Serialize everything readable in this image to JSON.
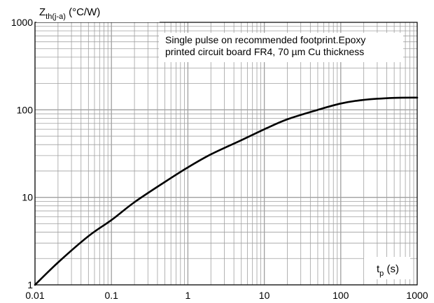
{
  "chart_data": {
    "type": "line",
    "xscale": "log",
    "yscale": "log",
    "xlim": [
      0.01,
      1000
    ],
    "ylim": [
      1,
      1000
    ],
    "grid": true,
    "x_ticks": [
      "0.01",
      "0.1",
      "1",
      "10",
      "100",
      "1000"
    ],
    "y_ticks": [
      "1",
      "10",
      "100",
      "1000"
    ],
    "ylabel": {
      "main": "Z",
      "sub": "th(j-a)",
      "unit": " (°C/W)"
    },
    "xlabel": {
      "main": "t",
      "sub": "p",
      "unit": " (s)"
    },
    "annotation": [
      "Single pulse on recommended footprint.Epoxy",
      "printed circuit board FR4, 70 µm Cu thickness"
    ],
    "series": [
      {
        "color": "#000000",
        "x": [
          0.01,
          0.02,
          0.05,
          0.1,
          0.2,
          0.5,
          1,
          2,
          5,
          10,
          20,
          50,
          100,
          200,
          500,
          1000
        ],
        "y": [
          1,
          1.8,
          3.6,
          5.5,
          8.8,
          15,
          22,
          31,
          45,
          60,
          78,
          100,
          118,
          130,
          137,
          138
        ]
      }
    ]
  }
}
